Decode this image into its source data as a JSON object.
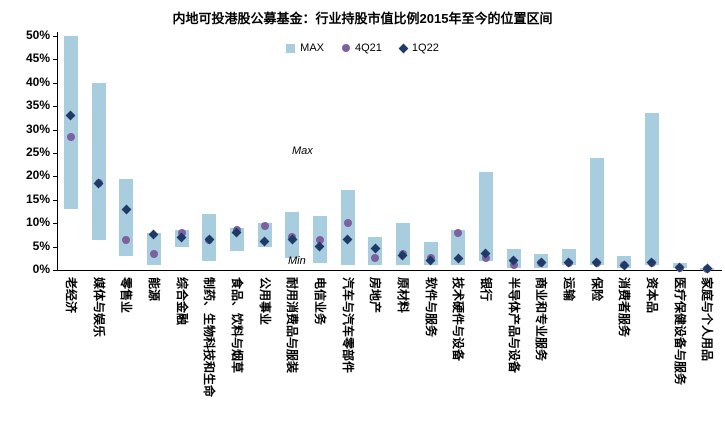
{
  "title": "内地可投港股公募基金：行业持股市值比例2015年至今的位置区间",
  "legend": {
    "max": "MAX",
    "q421": "4Q21",
    "q122": "1Q22"
  },
  "annotations": {
    "max": "Max",
    "min": "Min"
  },
  "chart_data": {
    "type": "bar",
    "subtype": "floating-range-bar-with-point-markers",
    "title": "内地可投港股公募基金：行业持股市值比例2015年至今的位置区间",
    "xlabel": "",
    "ylabel": "",
    "ylim": [
      0,
      50
    ],
    "ytick_step": 5,
    "ytick_suffix": "%",
    "grid": false,
    "legend_position": "top-center",
    "colors": {
      "bar": "#a7cdde",
      "q421": "#7d60a0",
      "q122": "#203a68"
    },
    "categories": [
      "老经济",
      "媒体与娱乐",
      "零售业",
      "能源",
      "综合金融",
      "制药、生物科技和生命",
      "食品、饮料与烟草",
      "公用事业",
      "耐用消费品与服装",
      "电信业务",
      "汽车与汽车零部件",
      "房地产",
      "原材料",
      "软件与服务",
      "技术硬件与设备",
      "银行",
      "半导体产品与设备",
      "商业和专业服务",
      "运输",
      "保险",
      "消费者服务",
      "资本品",
      "医疗保健设备与服务",
      "家庭与个人用品"
    ],
    "series": [
      {
        "name": "MAX",
        "type": "range",
        "low": [
          13,
          6.5,
          3,
          1,
          5,
          2,
          4,
          5,
          2.5,
          1.5,
          1,
          1,
          1,
          1,
          1,
          2,
          0.5,
          0.5,
          1,
          1,
          0.5,
          1,
          0.5,
          0
        ],
        "high": [
          50,
          40,
          19.5,
          8,
          8.5,
          12,
          9,
          10,
          12.5,
          11.5,
          17,
          7,
          10,
          6,
          8.5,
          21,
          4.5,
          3.5,
          4.5,
          24,
          3,
          33.5,
          1.5,
          0.5
        ]
      },
      {
        "name": "4Q21",
        "type": "point",
        "marker": "circle",
        "values": [
          28.5,
          18.5,
          6.5,
          3.5,
          8,
          6.5,
          8.5,
          9.5,
          7,
          6.5,
          10,
          2.5,
          3.5,
          2.5,
          8,
          2.5,
          1,
          1.5,
          1.5,
          1.5,
          1,
          1.5,
          0.5,
          0.3
        ]
      },
      {
        "name": "1Q22",
        "type": "point",
        "marker": "diamond",
        "values": [
          33,
          18.5,
          13,
          7.5,
          7,
          6.5,
          8,
          6,
          6.5,
          5,
          6.5,
          4.5,
          3,
          2,
          2.5,
          3.5,
          2,
          1.5,
          1.5,
          1.5,
          1,
          1.5,
          0.5,
          0.3
        ]
      }
    ]
  }
}
